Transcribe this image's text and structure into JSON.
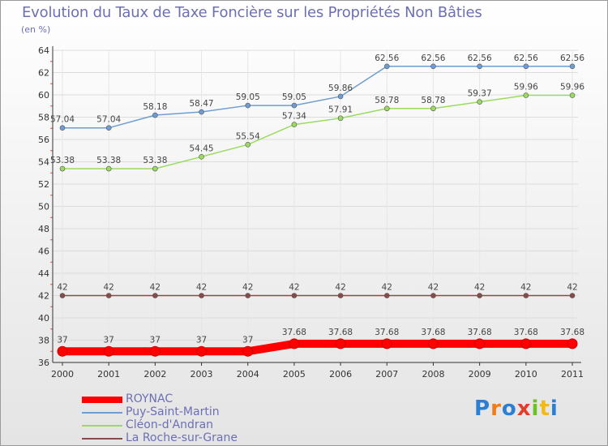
{
  "header": {
    "title": "Evolution du Taux de Taxe Foncière sur les Propriétés Non Bâties",
    "unit": "(en %)"
  },
  "chart_data": {
    "type": "line",
    "title": "Evolution du Taux de Taxe Foncière sur les Propriétés Non Bâties",
    "ylabel": "(en %)",
    "xlabel": "",
    "x": [
      "2000",
      "2001",
      "2002",
      "2003",
      "2004",
      "2005",
      "2006",
      "2007",
      "2008",
      "2009",
      "2010",
      "2011"
    ],
    "ylim": [
      36,
      64
    ],
    "yticks": [
      "36",
      "38",
      "40",
      "42",
      "44",
      "46",
      "48",
      "50",
      "52",
      "54",
      "56",
      "58",
      "60",
      "62",
      "64"
    ],
    "grid": "horizontal",
    "legend_position": "bottom-left",
    "series": [
      {
        "name": "ROYNAC",
        "color": "#ff0000",
        "values": [
          37,
          37,
          37,
          37,
          37,
          37.68,
          37.68,
          37.68,
          37.68,
          37.68,
          37.68,
          37.68
        ],
        "labels": [
          "37",
          "37",
          "37",
          "37",
          "37",
          "37.68",
          "37.68",
          "37.68",
          "37.68",
          "37.68",
          "37.68",
          "37.68"
        ]
      },
      {
        "name": "Puy-Saint-Martin",
        "color": "#6c9ed3",
        "values": [
          57.04,
          57.04,
          58.18,
          58.47,
          59.05,
          59.05,
          59.86,
          62.56,
          62.56,
          62.56,
          62.56,
          62.56
        ],
        "labels": [
          "57.04",
          "57.04",
          "58.18",
          "58.47",
          "59.05",
          "59.05",
          "59.86",
          "62.56",
          "62.56",
          "62.56",
          "62.56",
          "62.56"
        ]
      },
      {
        "name": "Cléon-d'Andran",
        "color": "#9bdb5f",
        "values": [
          53.38,
          53.38,
          53.38,
          54.45,
          55.54,
          57.34,
          57.91,
          58.78,
          58.78,
          59.37,
          59.96,
          59.96
        ],
        "labels": [
          "53.38",
          "53.38",
          "53.38",
          "54.45",
          "55.54",
          "57.34",
          "57.91",
          "58.78",
          "58.78",
          "59.37",
          "59.96",
          "59.96"
        ]
      },
      {
        "name": "La Roche-sur-Grane",
        "color": "#8b4a4a",
        "values": [
          42,
          42,
          42,
          42,
          42,
          42,
          42,
          42,
          42,
          42,
          42,
          42
        ],
        "labels": [
          "42",
          "42",
          "42",
          "42",
          "42",
          "42",
          "42",
          "42",
          "42",
          "42",
          "42",
          "42"
        ]
      }
    ]
  },
  "legend": {
    "items": [
      {
        "label": "ROYNAC",
        "color": "#ff0000"
      },
      {
        "label": "Puy-Saint-Martin",
        "color": "#6c9ed3"
      },
      {
        "label": "Cléon-d'Andran",
        "color": "#9bdb5f"
      },
      {
        "label": "La Roche-sur-Grane",
        "color": "#8b4a4a"
      }
    ]
  },
  "logo": {
    "text": "Proxiti",
    "letter_colors": [
      "#2a7fd4",
      "#ef7d1a",
      "#2a7fd4",
      "#e53b2b",
      "#6fbf2a",
      "#f2b81c",
      "#2a7fd4"
    ]
  }
}
